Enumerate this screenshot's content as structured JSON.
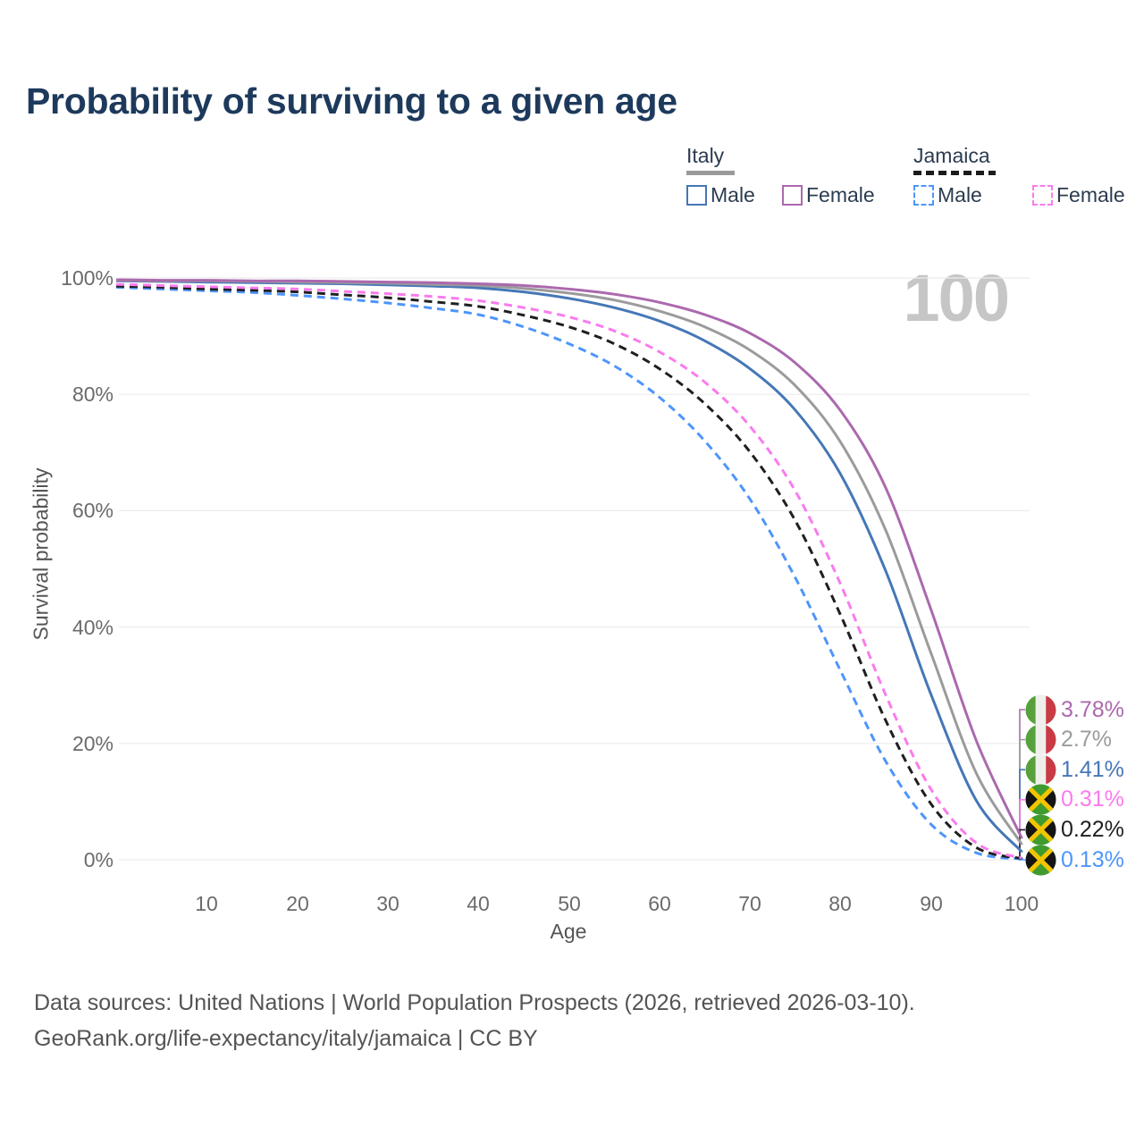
{
  "title": "Probability of surviving to a given age",
  "watermark": "100",
  "legend": {
    "groups": [
      {
        "id": "italy",
        "label": "Italy",
        "underline_style": "solid",
        "underline_color": "#9a9a9a",
        "items": [
          {
            "series": "italy-male",
            "label": "Male"
          },
          {
            "series": "italy-female",
            "label": "Female"
          }
        ]
      },
      {
        "id": "jamaica",
        "label": "Jamaica",
        "underline_style": "dashed",
        "underline_color": "#1c1c1c",
        "items": [
          {
            "series": "jamaica-male",
            "label": "Male"
          },
          {
            "series": "jamaica-female",
            "label": "Female"
          }
        ]
      }
    ]
  },
  "axes": {
    "y_label": "Survival probability",
    "x_label": "Age",
    "y_ticks": [
      "100%",
      "80%",
      "60%",
      "40%",
      "20%",
      "0%"
    ],
    "x_ticks": [
      "10",
      "20",
      "30",
      "40",
      "50",
      "60",
      "70",
      "80",
      "90",
      "100"
    ]
  },
  "footer": {
    "line1": "Data sources: United Nations | World Population Prospects (2026, retrieved 2026-03-10).",
    "line2": "GeoRank.org/life-expectancy/italy/jamaica | CC BY"
  },
  "colors": {
    "title_text": "#1d3a5c",
    "axis_text": "#6b6b6b",
    "grid": "#ececec",
    "watermark_text": "#c6c6c6",
    "footer_text": "#545454",
    "legend_text": "#2b3c50"
  },
  "chart_data": {
    "type": "line",
    "title": "Probability of surviving to a given age",
    "xlabel": "Age",
    "ylabel": "Survival probability",
    "xlim": [
      0,
      100
    ],
    "ylim": [
      0,
      100
    ],
    "grid": "horizontal",
    "legend_position": "top-right",
    "hover_age_marker": 100,
    "ages": [
      0,
      5,
      10,
      15,
      20,
      25,
      30,
      35,
      40,
      45,
      50,
      55,
      60,
      65,
      70,
      75,
      80,
      85,
      90,
      95,
      100
    ],
    "series": [
      {
        "id": "italy-female",
        "name": "Italy Female",
        "flag": "italy",
        "color": "#ab69ae",
        "line": "solid",
        "end_label": "3.78%",
        "values": [
          99.7,
          99.6,
          99.6,
          99.5,
          99.5,
          99.4,
          99.3,
          99.2,
          99.0,
          98.7,
          98.1,
          97.2,
          95.8,
          93.7,
          90.5,
          85.4,
          77.2,
          63.9,
          43.0,
          20.5,
          3.78
        ]
      },
      {
        "id": "italy",
        "name": "Italy",
        "flag": "italy",
        "color": "#9b9b9b",
        "line": "solid",
        "end_label": "2.7%",
        "values": [
          99.6,
          99.5,
          99.5,
          99.4,
          99.3,
          99.2,
          99.1,
          98.9,
          98.7,
          98.2,
          97.4,
          96.2,
          94.3,
          91.6,
          87.6,
          81.5,
          71.8,
          56.6,
          35.5,
          14.9,
          2.7
        ]
      },
      {
        "id": "italy-male",
        "name": "Italy Male",
        "flag": "italy",
        "color": "#4577b6",
        "line": "solid",
        "end_label": "1.41%",
        "values": [
          99.5,
          99.4,
          99.3,
          99.2,
          99.1,
          99.0,
          98.8,
          98.6,
          98.3,
          97.6,
          96.5,
          94.9,
          92.6,
          89.2,
          84.4,
          77.3,
          66.3,
          49.6,
          28.4,
          10.2,
          1.41
        ]
      },
      {
        "id": "jamaica-female",
        "name": "Jamaica Female",
        "flag": "jamaica",
        "color": "#fa7bee",
        "line": "dashed",
        "end_label": "0.31%",
        "values": [
          98.9,
          98.7,
          98.5,
          98.3,
          98.1,
          97.7,
          97.3,
          96.8,
          96.1,
          94.9,
          93.3,
          90.9,
          87.3,
          82.1,
          74.5,
          63.4,
          47.4,
          28.3,
          12.1,
          2.9,
          0.31
        ]
      },
      {
        "id": "jamaica",
        "name": "Jamaica",
        "flag": "jamaica",
        "color": "#1f1f1f",
        "line": "dashed",
        "end_label": "0.22%",
        "values": [
          98.6,
          98.4,
          98.1,
          97.9,
          97.6,
          97.1,
          96.6,
          95.9,
          95.1,
          93.6,
          91.6,
          88.7,
          84.4,
          78.4,
          70.1,
          58.3,
          42.1,
          23.9,
          9.6,
          2.1,
          0.22
        ]
      },
      {
        "id": "jamaica-male",
        "name": "Jamaica Male",
        "flag": "jamaica",
        "color": "#4e95fb",
        "line": "dashed",
        "end_label": "0.13%",
        "values": [
          98.4,
          98.1,
          97.8,
          97.5,
          97.0,
          96.4,
          95.7,
          94.8,
          93.7,
          91.6,
          88.7,
          84.9,
          79.5,
          72.0,
          62.0,
          48.5,
          32.5,
          16.9,
          6.1,
          1.2,
          0.13
        ]
      }
    ]
  }
}
